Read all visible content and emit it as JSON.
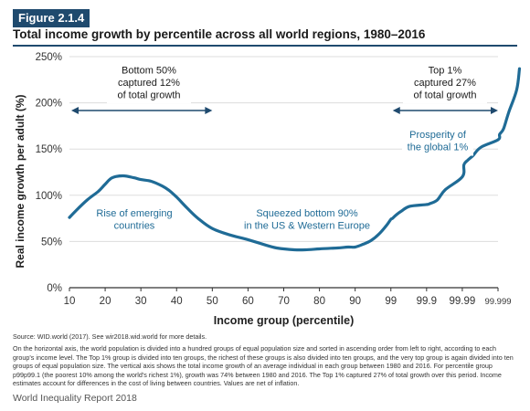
{
  "figure_label": "Figure 2.1.4",
  "title": "Total income growth by percentile across all world regions, 1980–2016",
  "source": "Source: WID.world (2017). See wir2018.wid.world for more details.",
  "note": "On the horizontal axis, the world population is divided into a hundred groups of equal population size and sorted in ascending order from left to right, according to each group's income level. The Top 1% group is divided into ten groups, the richest of these groups is also divided into ten groups, and the very top group is again divided into ten groups of equal population size. The vertical axis shows the total income growth of an average individual in each group between 1980 and 2016. For percentile group p99p99.1 (the poorest 10% among the world's richest 1%), growth was 74% between 1980 and 2016. The Top 1% captured 27% of total growth over this period. Income estimates account for differences in the cost of living between countries. Values are net of inflation.",
  "footer": "World Inequality Report 2018",
  "colors": {
    "line": "#1f6b96",
    "accent": "#1f4a6e",
    "grid": "#dddddd",
    "axis": "#333333"
  },
  "chart_data": {
    "type": "line",
    "title": "Total income growth by percentile across all world regions, 1980–2016",
    "xlabel": "Income group (percentile)",
    "ylabel": "Real income growth per adult (%)",
    "ylim": [
      0,
      250
    ],
    "yticks": [
      "0%",
      "50%",
      "100%",
      "150%",
      "200%",
      "250%"
    ],
    "ytick_values": [
      0,
      50,
      100,
      150,
      200,
      250
    ],
    "xticks": [
      "10",
      "20",
      "30",
      "40",
      "50",
      "60",
      "70",
      "80",
      "90",
      "99",
      "99.9",
      "99.99",
      "99.999"
    ],
    "xtick_positions": [
      10,
      20,
      30,
      40,
      50,
      60,
      70,
      80,
      90,
      99,
      99.9,
      99.99,
      99.999
    ],
    "grid": true,
    "series": [
      {
        "x": [
          10,
          12,
          15,
          18,
          20,
          22,
          25,
          28,
          30,
          33,
          36,
          38,
          40,
          43,
          46,
          50,
          55,
          60,
          65,
          68,
          70,
          73,
          76,
          80,
          85,
          88,
          90,
          92,
          94,
          96,
          98,
          99,
          99.1,
          99.3,
          99.5,
          99.7,
          99.9,
          99.92,
          99.95,
          99.97,
          99.99,
          99.991,
          99.993,
          99.995,
          99.997,
          99.999,
          99.9991,
          99.9993,
          99.9995,
          99.9997,
          99.9999
        ],
        "y": [
          76,
          84,
          95,
          104,
          112,
          119,
          121,
          119,
          117,
          115,
          110,
          105,
          98,
          86,
          75,
          64,
          57,
          52,
          46,
          43,
          42,
          41,
          41,
          42,
          43,
          44,
          44,
          47,
          51,
          58,
          68,
          74,
          75,
          79,
          83,
          88,
          90,
          91,
          95,
          106,
          120,
          133,
          138,
          143,
          152,
          160,
          166,
          172,
          190,
          214,
          237
        ]
      }
    ],
    "annotations": [
      {
        "text": [
          "Bottom 50%",
          "captured 12%",
          "of total growth"
        ],
        "boxed": true
      },
      {
        "text": [
          "Top 1%",
          "captured 27%",
          "of total growth"
        ],
        "boxed": true
      },
      {
        "text": [
          "Rise of emerging",
          "countries"
        ],
        "boxed": true
      },
      {
        "text": [
          "Squeezed bottom 90%",
          "in the US & Western Europe"
        ],
        "boxed": true
      },
      {
        "text": [
          "Prosperity of",
          "the global 1%"
        ],
        "boxed": true
      }
    ]
  }
}
